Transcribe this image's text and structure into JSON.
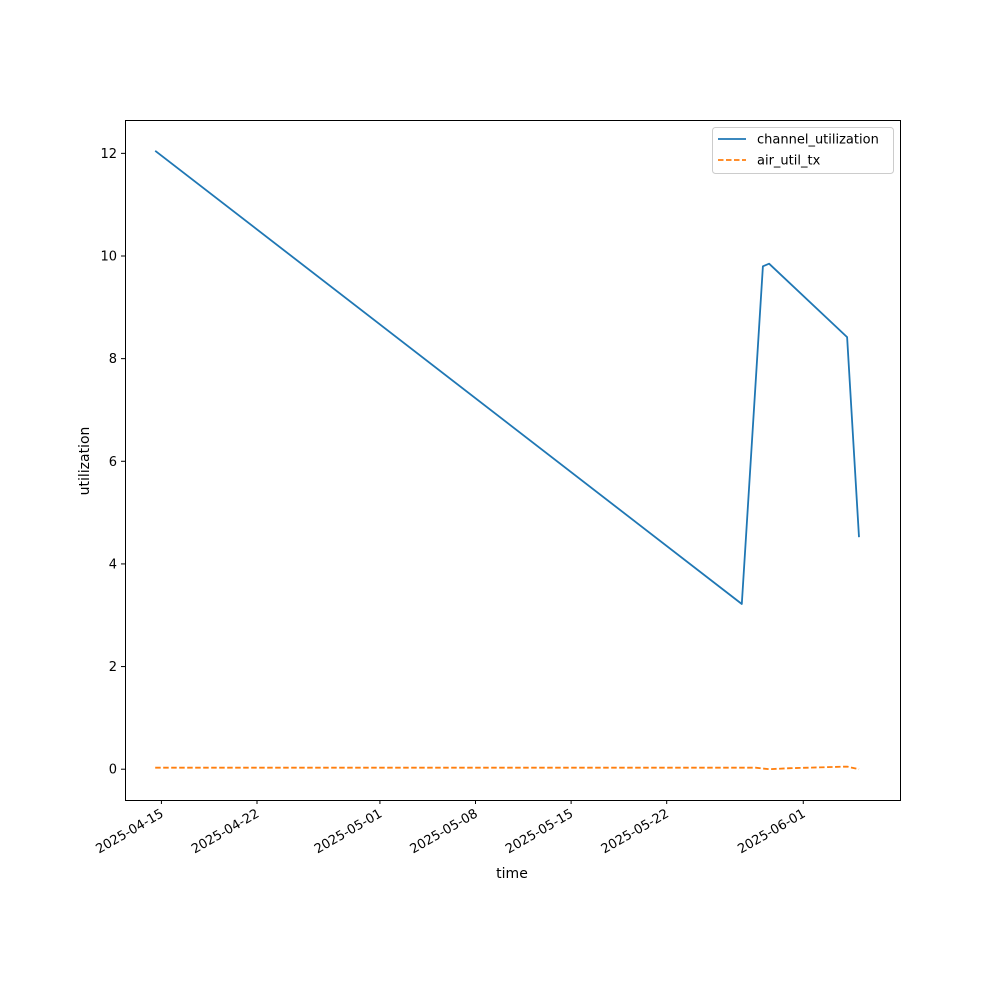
{
  "chart_data": {
    "type": "line",
    "title": "",
    "xlabel": "time",
    "ylabel": "utilization",
    "x_axis_type": "date",
    "x_ticks": [
      "2025-04-15",
      "2025-04-22",
      "2025-05-01",
      "2025-05-08",
      "2025-05-15",
      "2025-05-22",
      "2025-06-01"
    ],
    "y_ticks": [
      0,
      2,
      4,
      6,
      8,
      10,
      12
    ],
    "xlim": [
      "2025-04-12T08:00",
      "2025-06-08T02:00"
    ],
    "ylim": [
      -0.6,
      12.65
    ],
    "grid": false,
    "legend_position": "top-right",
    "series": [
      {
        "name": "channel_utilization",
        "color": "#1f77b4",
        "style": "solid",
        "points": [
          {
            "x": "2025-04-14T13:00",
            "y": 12.05
          },
          {
            "x": "2025-05-27T12:00",
            "y": 3.22
          },
          {
            "x": "2025-05-29T01:00",
            "y": 9.8
          },
          {
            "x": "2025-05-29T12:00",
            "y": 9.85
          },
          {
            "x": "2025-06-04T05:00",
            "y": 8.42
          },
          {
            "x": "2025-06-05T02:00",
            "y": 4.52
          }
        ]
      },
      {
        "name": "air_util_tx",
        "color": "#ff7f0e",
        "style": "dashed",
        "points": [
          {
            "x": "2025-04-14T13:00",
            "y": 0.03
          },
          {
            "x": "2025-05-28T12:00",
            "y": 0.03
          },
          {
            "x": "2025-05-29T12:00",
            "y": 0.0
          },
          {
            "x": "2025-05-31T00:00",
            "y": 0.02
          },
          {
            "x": "2025-06-04T05:00",
            "y": 0.05
          },
          {
            "x": "2025-06-05T02:00",
            "y": 0.0
          }
        ]
      }
    ]
  }
}
